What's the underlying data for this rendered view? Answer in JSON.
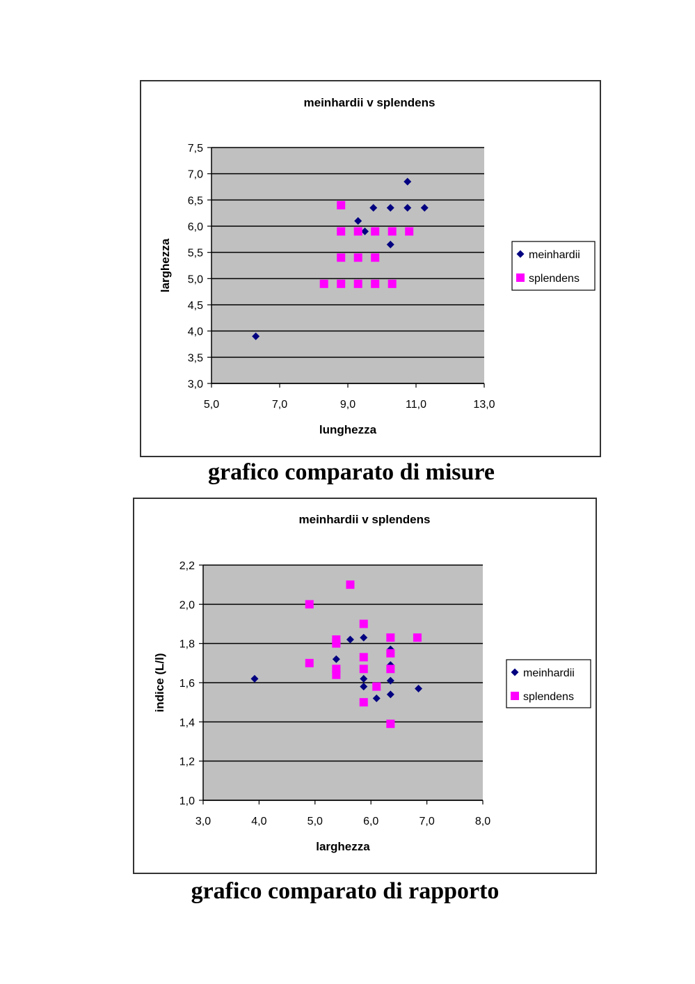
{
  "chart_data": [
    {
      "type": "scatter",
      "title": "meinhardii v splendens",
      "xlabel": "lunghezza",
      "ylabel": "larghezza",
      "xlim": [
        5,
        13
      ],
      "ylim": [
        3,
        7.5
      ],
      "xticks": [
        "5,0",
        "7,0",
        "9,0",
        "11,0",
        "13,0"
      ],
      "xtick_values": [
        5,
        7,
        9,
        11,
        13
      ],
      "yticks": [
        "3,0",
        "3,5",
        "4,0",
        "4,5",
        "5,0",
        "5,5",
        "6,0",
        "6,5",
        "7,0",
        "7,5"
      ],
      "ytick_values": [
        3,
        3.5,
        4,
        4.5,
        5,
        5.5,
        6,
        6.5,
        7,
        7.5
      ],
      "grid": "horizontal",
      "legend": "right",
      "series": [
        {
          "name": "meinhardii",
          "marker": "diamond",
          "color": "#000080",
          "points": [
            [
              6.3,
              3.9
            ],
            [
              9.3,
              6.1
            ],
            [
              9.5,
              5.9
            ],
            [
              9.75,
              6.35
            ],
            [
              10.25,
              6.35
            ],
            [
              10.25,
              5.65
            ],
            [
              10.75,
              6.85
            ],
            [
              10.75,
              6.35
            ],
            [
              11.25,
              6.35
            ]
          ]
        },
        {
          "name": "splendens",
          "marker": "square",
          "color": "#ff00ff",
          "points": [
            [
              8.3,
              4.9
            ],
            [
              8.8,
              4.9
            ],
            [
              9.3,
              4.9
            ],
            [
              9.8,
              4.9
            ],
            [
              10.3,
              4.9
            ],
            [
              8.8,
              5.4
            ],
            [
              9.3,
              5.4
            ],
            [
              9.8,
              5.4
            ],
            [
              8.8,
              5.9
            ],
            [
              9.3,
              5.9
            ],
            [
              9.8,
              5.9
            ],
            [
              10.3,
              5.9
            ],
            [
              10.8,
              5.9
            ],
            [
              8.8,
              6.4
            ]
          ]
        }
      ]
    },
    {
      "type": "scatter",
      "title": "meinhardii v splendens",
      "xlabel": "larghezza",
      "ylabel": "indice (L/l)",
      "xlim": [
        3,
        8
      ],
      "ylim": [
        1,
        2.2
      ],
      "xticks": [
        "3,0",
        "4,0",
        "5,0",
        "6,0",
        "7,0",
        "8,0"
      ],
      "xtick_values": [
        3,
        4,
        5,
        6,
        7,
        8
      ],
      "yticks": [
        "1,0",
        "1,2",
        "1,4",
        "1,6",
        "1,8",
        "2,0",
        "2,2"
      ],
      "ytick_values": [
        1,
        1.2,
        1.4,
        1.6,
        1.8,
        2,
        2.2
      ],
      "grid": "horizontal",
      "legend": "right",
      "series": [
        {
          "name": "meinhardii",
          "marker": "diamond",
          "color": "#000080",
          "points": [
            [
              3.92,
              1.62
            ],
            [
              5.38,
              1.72
            ],
            [
              5.63,
              1.82
            ],
            [
              5.87,
              1.83
            ],
            [
              5.87,
              1.62
            ],
            [
              5.87,
              1.58
            ],
            [
              6.1,
              1.52
            ],
            [
              6.35,
              1.77
            ],
            [
              6.35,
              1.69
            ],
            [
              6.35,
              1.61
            ],
            [
              6.35,
              1.54
            ],
            [
              6.85,
              1.57
            ]
          ]
        },
        {
          "name": "splendens",
          "marker": "square",
          "color": "#ff00ff",
          "points": [
            [
              4.9,
              2.0
            ],
            [
              4.9,
              1.7
            ],
            [
              5.38,
              1.82
            ],
            [
              5.38,
              1.8
            ],
            [
              5.38,
              1.67
            ],
            [
              5.38,
              1.64
            ],
            [
              5.63,
              2.1
            ],
            [
              5.87,
              1.9
            ],
            [
              5.87,
              1.73
            ],
            [
              5.87,
              1.67
            ],
            [
              5.87,
              1.5
            ],
            [
              6.1,
              1.58
            ],
            [
              6.35,
              1.83
            ],
            [
              6.35,
              1.75
            ],
            [
              6.35,
              1.67
            ],
            [
              6.35,
              1.39
            ],
            [
              6.83,
              1.83
            ]
          ]
        }
      ]
    }
  ],
  "captions": {
    "measures": "grafico comparato di misure",
    "ratio": "grafico comparato di rapporto"
  }
}
